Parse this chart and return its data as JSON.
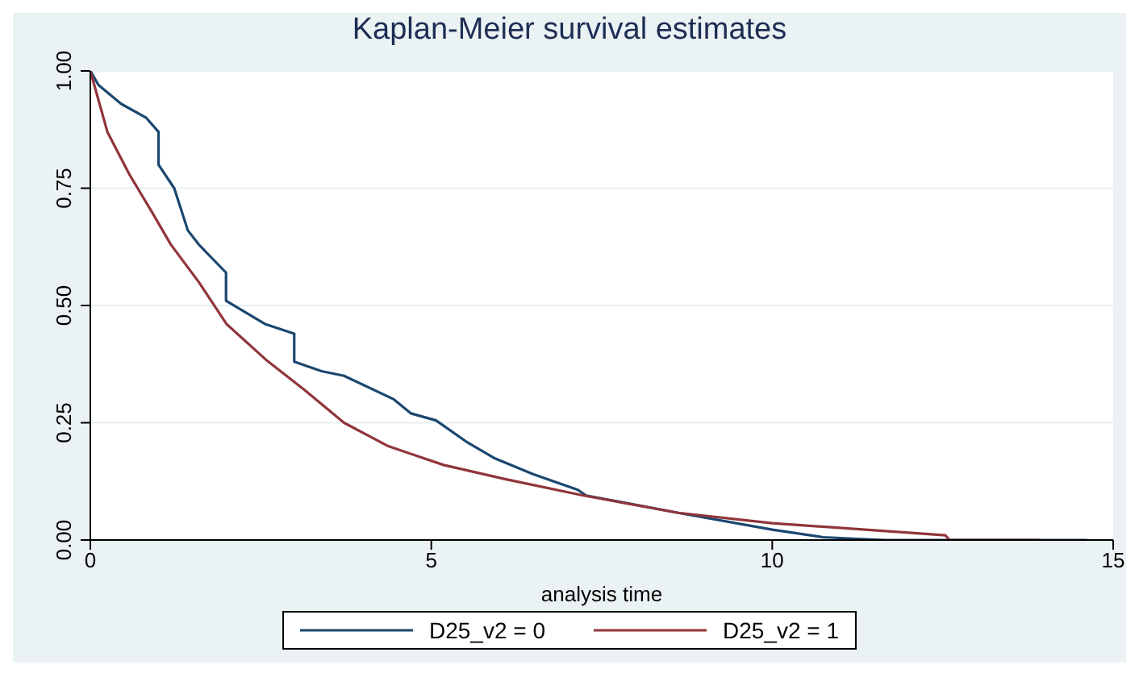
{
  "chart_data": {
    "type": "line",
    "title": "Kaplan-Meier survival estimates",
    "xlabel": "analysis time",
    "xlim": [
      0,
      15
    ],
    "xticks": [
      0,
      5,
      10,
      15
    ],
    "ylim": [
      0,
      1
    ],
    "yticks": [
      {
        "value": 0,
        "label": "0.00"
      },
      {
        "value": 0.25,
        "label": "0.25"
      },
      {
        "value": 0.5,
        "label": "0.50"
      },
      {
        "value": 0.75,
        "label": "0.75"
      },
      {
        "value": 1,
        "label": "1.00"
      }
    ],
    "grid": "y",
    "legend": "bottom",
    "marker": "none",
    "line_style": "solid",
    "series": [
      {
        "name": "D25_v2 = 0",
        "color": "#1a476f",
        "x": [
          0,
          0.12,
          0.45,
          0.82,
          1.0,
          1.0,
          1.23,
          1.43,
          1.59,
          1.99,
          1.99,
          2.57,
          2.99,
          2.99,
          3.39,
          3.72,
          4.45,
          4.7,
          5.07,
          5.51,
          5.92,
          6.5,
          7.15,
          7.27,
          8.62,
          10.0,
          10.74,
          11.64,
          14.62
        ],
        "values": [
          1,
          0.97,
          0.93,
          0.9,
          0.87,
          0.8,
          0.75,
          0.66,
          0.63,
          0.57,
          0.51,
          0.46,
          0.44,
          0.38,
          0.36,
          0.35,
          0.3,
          0.27,
          0.255,
          0.21,
          0.175,
          0.14,
          0.107,
          0.095,
          0.058,
          0.022,
          0.006,
          0,
          0
        ]
      },
      {
        "name": "D25_v2 = 1",
        "color": "#90353b",
        "x": [
          0,
          0.25,
          0.57,
          0.9,
          1.18,
          1.59,
          2.0,
          2.57,
          3.14,
          3.72,
          4.37,
          5.18,
          6.08,
          7.23,
          8.62,
          10.0,
          12.54,
          12.6,
          13.92
        ],
        "values": [
          1,
          0.87,
          0.78,
          0.7,
          0.63,
          0.55,
          0.46,
          0.385,
          0.32,
          0.25,
          0.2,
          0.16,
          0.13,
          0.095,
          0.058,
          0.036,
          0.01,
          0,
          0
        ]
      }
    ]
  }
}
